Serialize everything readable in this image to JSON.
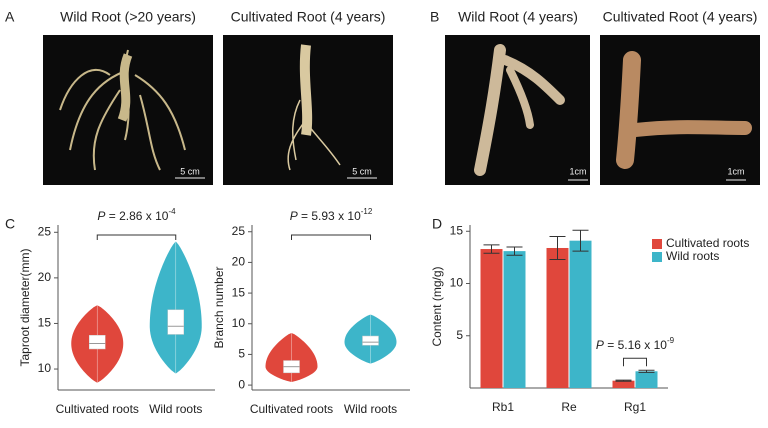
{
  "panels": {
    "a": {
      "letter": "A",
      "photos": [
        {
          "title": "Wild Root (>20 years)",
          "scale": "5 cm"
        },
        {
          "title": "Cultivated Root (4 years)",
          "scale": "5 cm"
        }
      ]
    },
    "b": {
      "letter": "B",
      "photos": [
        {
          "title": "Wild Root (4 years)",
          "scale": "1cm"
        },
        {
          "title": "Cultivated Root (4 years)",
          "scale": "1cm"
        }
      ]
    },
    "c": {
      "letter": "C"
    },
    "d": {
      "letter": "D"
    }
  },
  "chart_data": [
    {
      "type": "violin",
      "y_label": "Taproot diameter(mm)",
      "categories": [
        "Cultivated roots",
        "Wild roots"
      ],
      "colors": [
        "#e0473c",
        "#3db5c9"
      ],
      "stats": [
        {
          "min": 8.5,
          "q1": 12.2,
          "median": 12.8,
          "q3": 13.7,
          "max": 17
        },
        {
          "min": 9.5,
          "q1": 13.8,
          "median": 14.7,
          "q3": 16.5,
          "max": 24
        }
      ],
      "ylim": [
        7.7,
        25.8
      ],
      "yticks": [
        10,
        15,
        20,
        25
      ],
      "annotation": {
        "italic": "P",
        "text": " = 2.86 x 10",
        "exponent": "-4"
      }
    },
    {
      "type": "violin",
      "y_label": "Branch number",
      "categories": [
        "Cultivated roots",
        "Wild roots"
      ],
      "colors": [
        "#e0473c",
        "#3db5c9"
      ],
      "stats": [
        {
          "min": 0.5,
          "q1": 2,
          "median": 3,
          "q3": 4,
          "max": 8.5
        },
        {
          "min": 3.5,
          "q1": 6.5,
          "median": 7,
          "q3": 8,
          "max": 11.5
        }
      ],
      "ylim": [
        -0.8,
        26.1
      ],
      "yticks": [
        0,
        5,
        10,
        15,
        20,
        25
      ],
      "annotation": {
        "italic": "P",
        "text": " = 5.93 x 10",
        "exponent": "-12"
      }
    },
    {
      "type": "bar",
      "y_label": "Content (mg/g)",
      "categories": [
        "Rb1",
        "Re",
        "Rg1"
      ],
      "series": [
        {
          "name": "Cultivated roots",
          "color": "#e0473c",
          "values": [
            13.3,
            13.4,
            0.7
          ],
          "errors": [
            0.4,
            1.1,
            0.05
          ]
        },
        {
          "name": "Wild roots",
          "color": "#3db5c9",
          "values": [
            13.1,
            14.1,
            1.6
          ],
          "errors": [
            0.4,
            1.0,
            0.1
          ]
        }
      ],
      "ylim": [
        0,
        15.6
      ],
      "yticks": [
        5,
        10,
        15
      ],
      "legend": "upper right",
      "annotation": {
        "italic": "P",
        "text": " = 5.16 x 10",
        "exponent": "-9"
      }
    }
  ]
}
